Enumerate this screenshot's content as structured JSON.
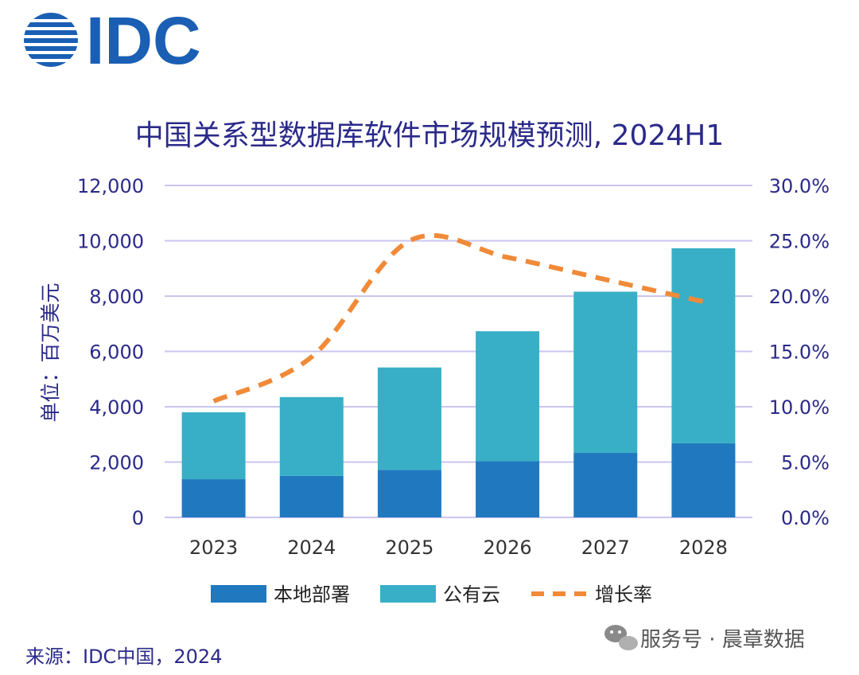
{
  "brand": {
    "logo_text": "IDC",
    "color": "#1a5fb4"
  },
  "source_note": "来源：IDC中国，2024",
  "watermark": {
    "icon": "wechat-icon",
    "text": "服务号 · 晨章数据"
  },
  "colors": {
    "local": "#2079bf",
    "cloud": "#38afc6",
    "growth": "#f08a38",
    "text": "#2b2a8a",
    "grid": "#c9c6ef"
  },
  "chart_data": {
    "type": "bar",
    "title": "中国关系型数据库软件市场规模预测, 2024H1",
    "ylabel": "单位：百万美元",
    "xlabel": "",
    "categories": [
      "2023",
      "2024",
      "2025",
      "2026",
      "2027",
      "2028"
    ],
    "ylim": [
      0,
      12000
    ],
    "yticks": [
      "0",
      "2,000",
      "4,000",
      "6,000",
      "8,000",
      "10,000",
      "12,000"
    ],
    "y2lim": [
      0,
      30
    ],
    "y2ticks": [
      "0.0%",
      "5.0%",
      "10.0%",
      "15.0%",
      "20.0%",
      "25.0%",
      "30.0%"
    ],
    "grid": true,
    "legend_position": "bottom",
    "series": [
      {
        "name": "本地部署",
        "kind": "stacked-bar",
        "values": [
          1380,
          1500,
          1720,
          2030,
          2330,
          2680
        ]
      },
      {
        "name": "公有云",
        "kind": "stacked-bar",
        "values": [
          2420,
          2850,
          3700,
          4700,
          5830,
          7050
        ]
      },
      {
        "name": "增长率",
        "kind": "dashed-line",
        "axis": "right",
        "values": [
          10.5,
          14.5,
          25.0,
          23.5,
          21.5,
          19.5
        ]
      }
    ]
  }
}
